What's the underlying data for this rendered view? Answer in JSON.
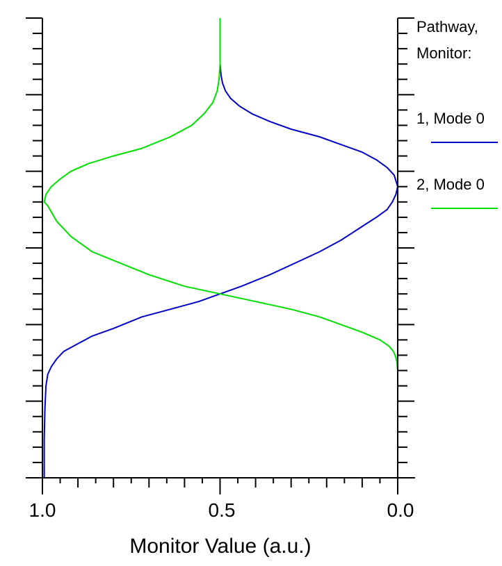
{
  "chart_data": {
    "type": "line",
    "title": "",
    "xlabel": "Monitor Value (a.u.)",
    "ylabel": "",
    "xlim": [
      1.0,
      0.0
    ],
    "ylim": [
      0,
      6
    ],
    "x_reversed": true,
    "grid": false,
    "x_tick_labels": [
      "1.0",
      "0.5",
      "0.0"
    ],
    "x_tick_values": [
      1.0,
      0.5,
      0.0
    ],
    "legend": {
      "title_line1": "Pathway,",
      "title_line2": "Monitor:",
      "placement": "right"
    },
    "series": [
      {
        "name": "1, Mode 0",
        "color": "#0000c8",
        "x": [
          0.995,
          0.995,
          0.993,
          0.99,
          0.985,
          0.975,
          0.96,
          0.94,
          0.9,
          0.86,
          0.8,
          0.72,
          0.64,
          0.56,
          0.5,
          0.44,
          0.36,
          0.29,
          0.22,
          0.16,
          0.11,
          0.06,
          0.03,
          0.015,
          0.005,
          0.0,
          0.01,
          0.03,
          0.06,
          0.1,
          0.16,
          0.22,
          0.3,
          0.36,
          0.41,
          0.445,
          0.47,
          0.485,
          0.493,
          0.497,
          0.5,
          0.5
        ],
        "y": [
          0,
          0.5,
          0.9,
          1.2,
          1.35,
          1.45,
          1.55,
          1.65,
          1.75,
          1.85,
          1.95,
          2.1,
          2.2,
          2.3,
          2.4,
          2.5,
          2.65,
          2.8,
          2.95,
          3.1,
          3.25,
          3.4,
          3.5,
          3.6,
          3.7,
          3.8,
          3.95,
          4.05,
          4.15,
          4.25,
          4.35,
          4.45,
          4.55,
          4.65,
          4.75,
          4.85,
          4.95,
          5.05,
          5.15,
          5.25,
          5.4,
          6.0
        ]
      },
      {
        "name": "2, Mode 0",
        "color": "#00e000",
        "x": [
          0.0,
          0.0,
          0.002,
          0.005,
          0.012,
          0.025,
          0.05,
          0.1,
          0.16,
          0.22,
          0.3,
          0.4,
          0.5,
          0.6,
          0.7,
          0.78,
          0.86,
          0.92,
          0.96,
          0.985,
          0.995,
          0.99,
          0.975,
          0.95,
          0.92,
          0.87,
          0.8,
          0.72,
          0.64,
          0.58,
          0.545,
          0.52,
          0.508,
          0.503,
          0.5,
          0.5
        ],
        "y": [
          0,
          1.4,
          1.5,
          1.57,
          1.65,
          1.72,
          1.8,
          1.9,
          2.0,
          2.1,
          2.2,
          2.3,
          2.4,
          2.5,
          2.65,
          2.8,
          2.95,
          3.15,
          3.35,
          3.55,
          3.6,
          3.7,
          3.8,
          3.9,
          4.0,
          4.1,
          4.2,
          4.3,
          4.45,
          4.6,
          4.75,
          4.9,
          5.05,
          5.2,
          5.4,
          6.0
        ]
      }
    ]
  }
}
